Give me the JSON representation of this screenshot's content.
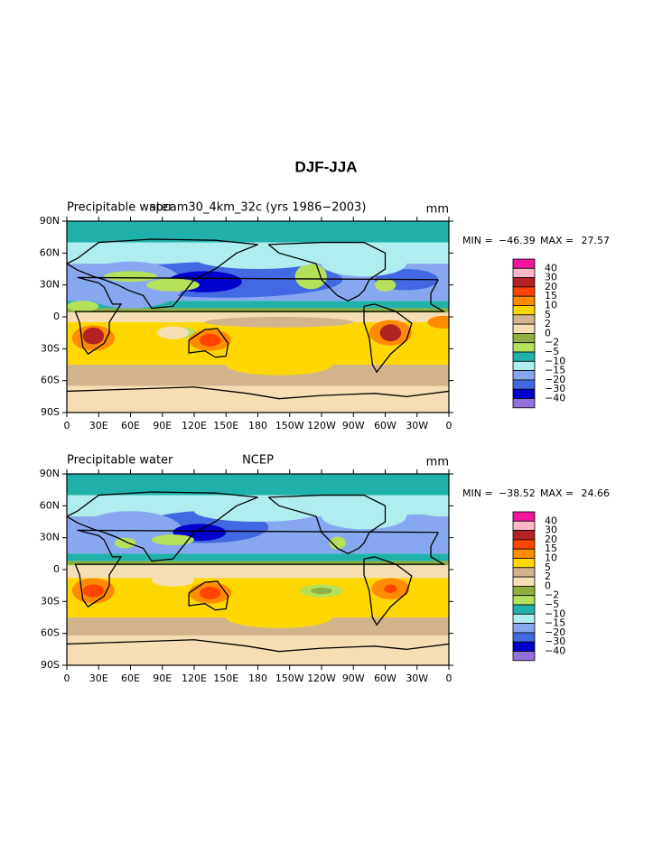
{
  "title": "DJF-JJA",
  "chart_data": [
    {
      "type": "contour",
      "title_left": "Precipitable water",
      "title_center": "spcam30_4km_32c (yrs 1986−2003)",
      "title_right": "mm",
      "min_label": "MIN =",
      "min": {
        "value": -46.39,
        "label": "−46.39"
      },
      "max_label": "MAX =",
      "max": 27.57,
      "xlim": [
        0,
        360
      ],
      "xticks": [
        0,
        {
          "value": 30,
          "label": "30E"
        },
        {
          "value": 60,
          "label": "60E"
        },
        {
          "value": 90,
          "label": "90E"
        },
        {
          "value": 120,
          "label": "120E"
        },
        {
          "value": 150,
          "label": "150E"
        },
        180,
        {
          "value": 210,
          "label": "150W"
        },
        {
          "value": 240,
          "label": "120W"
        },
        {
          "value": 270,
          "label": "90W"
        },
        {
          "value": 300,
          "label": "60W"
        },
        {
          "value": 330,
          "label": "30W"
        },
        {
          "value": 360,
          "label": "0"
        }
      ],
      "ylim": [
        -90,
        90
      ],
      "yticks": [
        {
          "value": -90,
          "label": "90S"
        },
        {
          "value": -60,
          "label": "60S"
        },
        {
          "value": -30,
          "label": "30S"
        },
        0,
        {
          "value": 30,
          "label": "30N"
        },
        {
          "value": 60,
          "label": "60N"
        },
        {
          "value": 90,
          "label": "90N"
        }
      ],
      "levels": [
        40,
        30,
        20,
        15,
        10,
        5,
        2,
        0,
        {
          "value": -2,
          "label": "−2"
        },
        {
          "value": -5,
          "label": "−5"
        },
        {
          "value": -10,
          "label": "−10"
        },
        {
          "value": -15,
          "label": "−15"
        },
        {
          "value": -20,
          "label": "−20"
        },
        {
          "value": -30,
          "label": "−30"
        },
        {
          "value": -40,
          "label": "−40"
        }
      ],
      "colors": [
        "#f0169e",
        "#ffb6c8",
        "#b22222",
        "#ff4500",
        "#ff8c00",
        "#ffd700",
        "#d2b48c",
        "#f5deb3",
        "#8fb040",
        "#b4e05a",
        "#20b2aa",
        "#afeeee",
        "#87a8f0",
        "#4169e1",
        "#0000cd",
        "#9370db"
      ]
    },
    {
      "type": "contour",
      "title_left": "Precipitable water",
      "title_center": "NCEP",
      "title_right": "mm",
      "min_label": "MIN =",
      "min": {
        "value": -38.52,
        "label": "−38.52"
      },
      "max_label": "MAX =",
      "max": 24.66,
      "xlim": [
        0,
        360
      ],
      "xticks": [
        0,
        {
          "value": 30,
          "label": "30E"
        },
        {
          "value": 60,
          "label": "60E"
        },
        {
          "value": 90,
          "label": "90E"
        },
        {
          "value": 120,
          "label": "120E"
        },
        {
          "value": 150,
          "label": "150E"
        },
        180,
        {
          "value": 210,
          "label": "150W"
        },
        {
          "value": 240,
          "label": "120W"
        },
        {
          "value": 270,
          "label": "90W"
        },
        {
          "value": 300,
          "label": "60W"
        },
        {
          "value": 330,
          "label": "30W"
        },
        {
          "value": 360,
          "label": "0"
        }
      ],
      "ylim": [
        -90,
        90
      ],
      "yticks": [
        {
          "value": -90,
          "label": "90S"
        },
        {
          "value": -60,
          "label": "60S"
        },
        {
          "value": -30,
          "label": "30S"
        },
        0,
        {
          "value": 30,
          "label": "30N"
        },
        {
          "value": 60,
          "label": "60N"
        },
        {
          "value": 90,
          "label": "90N"
        }
      ],
      "levels": [
        40,
        30,
        20,
        15,
        10,
        5,
        2,
        0,
        {
          "value": -2,
          "label": "−2"
        },
        {
          "value": -5,
          "label": "−5"
        },
        {
          "value": -10,
          "label": "−10"
        },
        {
          "value": -15,
          "label": "−15"
        },
        {
          "value": -20,
          "label": "−20"
        },
        {
          "value": -30,
          "label": "−30"
        },
        {
          "value": -40,
          "label": "−40"
        }
      ],
      "colors": [
        "#f0169e",
        "#ffb6c8",
        "#b22222",
        "#ff4500",
        "#ff8c00",
        "#ffd700",
        "#d2b48c",
        "#f5deb3",
        "#8fb040",
        "#b4e05a",
        "#20b2aa",
        "#afeeee",
        "#87a8f0",
        "#4169e1",
        "#0000cd",
        "#9370db"
      ]
    }
  ]
}
